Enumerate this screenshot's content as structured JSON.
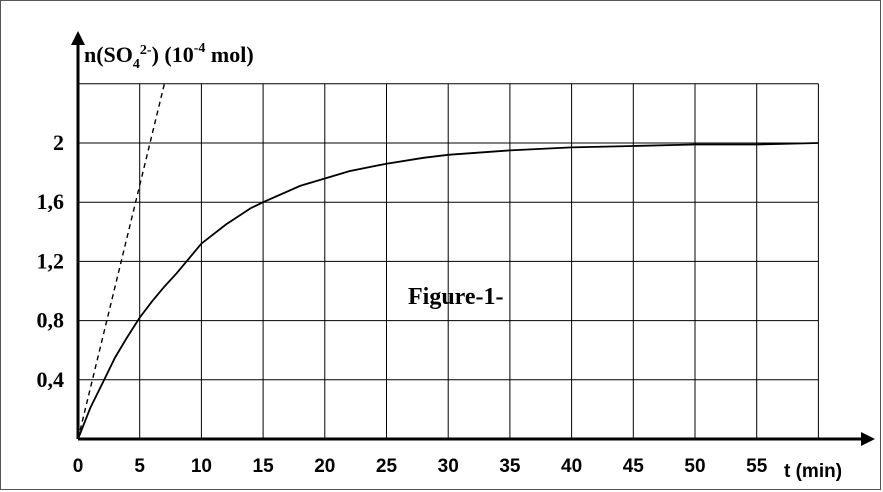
{
  "chart_data": {
    "type": "line",
    "ylabel": {
      "prefix": "n(SO",
      "subscript": "4",
      "charge": "2-",
      "middle": ") (10",
      "exponent": "-4",
      "unit": " mol)"
    },
    "xlabel": "t (min)",
    "annotation": "Figure-1-",
    "x_ticks": [
      "0",
      "5",
      "10",
      "15",
      "20",
      "25",
      "30",
      "35",
      "40",
      "45",
      "50",
      "55"
    ],
    "y_ticks": [
      {
        "value": 0.4,
        "label": "0,4"
      },
      {
        "value": 0.8,
        "label": "0,8"
      },
      {
        "value": 1.2,
        "label": "1,2"
      },
      {
        "value": 1.6,
        "label": "1,6"
      },
      {
        "value": 2.0,
        "label": "2"
      }
    ],
    "xlim": [
      0,
      60
    ],
    "ylim": [
      0,
      2.4
    ],
    "grid": true,
    "series": [
      {
        "style": "solid",
        "x": [
          0,
          1,
          2,
          3,
          4,
          5,
          6,
          7,
          8,
          10,
          12,
          14,
          15,
          18,
          20,
          22,
          25,
          28,
          30,
          35,
          40,
          45,
          50,
          55,
          60
        ],
        "y": [
          0,
          0.21,
          0.38,
          0.55,
          0.69,
          0.82,
          0.93,
          1.03,
          1.12,
          1.32,
          1.45,
          1.56,
          1.6,
          1.71,
          1.76,
          1.81,
          1.86,
          1.9,
          1.92,
          1.95,
          1.97,
          1.98,
          1.99,
          1.99,
          2.0
        ]
      },
      {
        "style": "dashed",
        "description": "tangent at origin",
        "x": [
          0,
          7
        ],
        "y": [
          0,
          2.4
        ]
      }
    ]
  },
  "colors": {
    "line": "#000000",
    "grid": "#000000",
    "background": "#ffffff"
  }
}
